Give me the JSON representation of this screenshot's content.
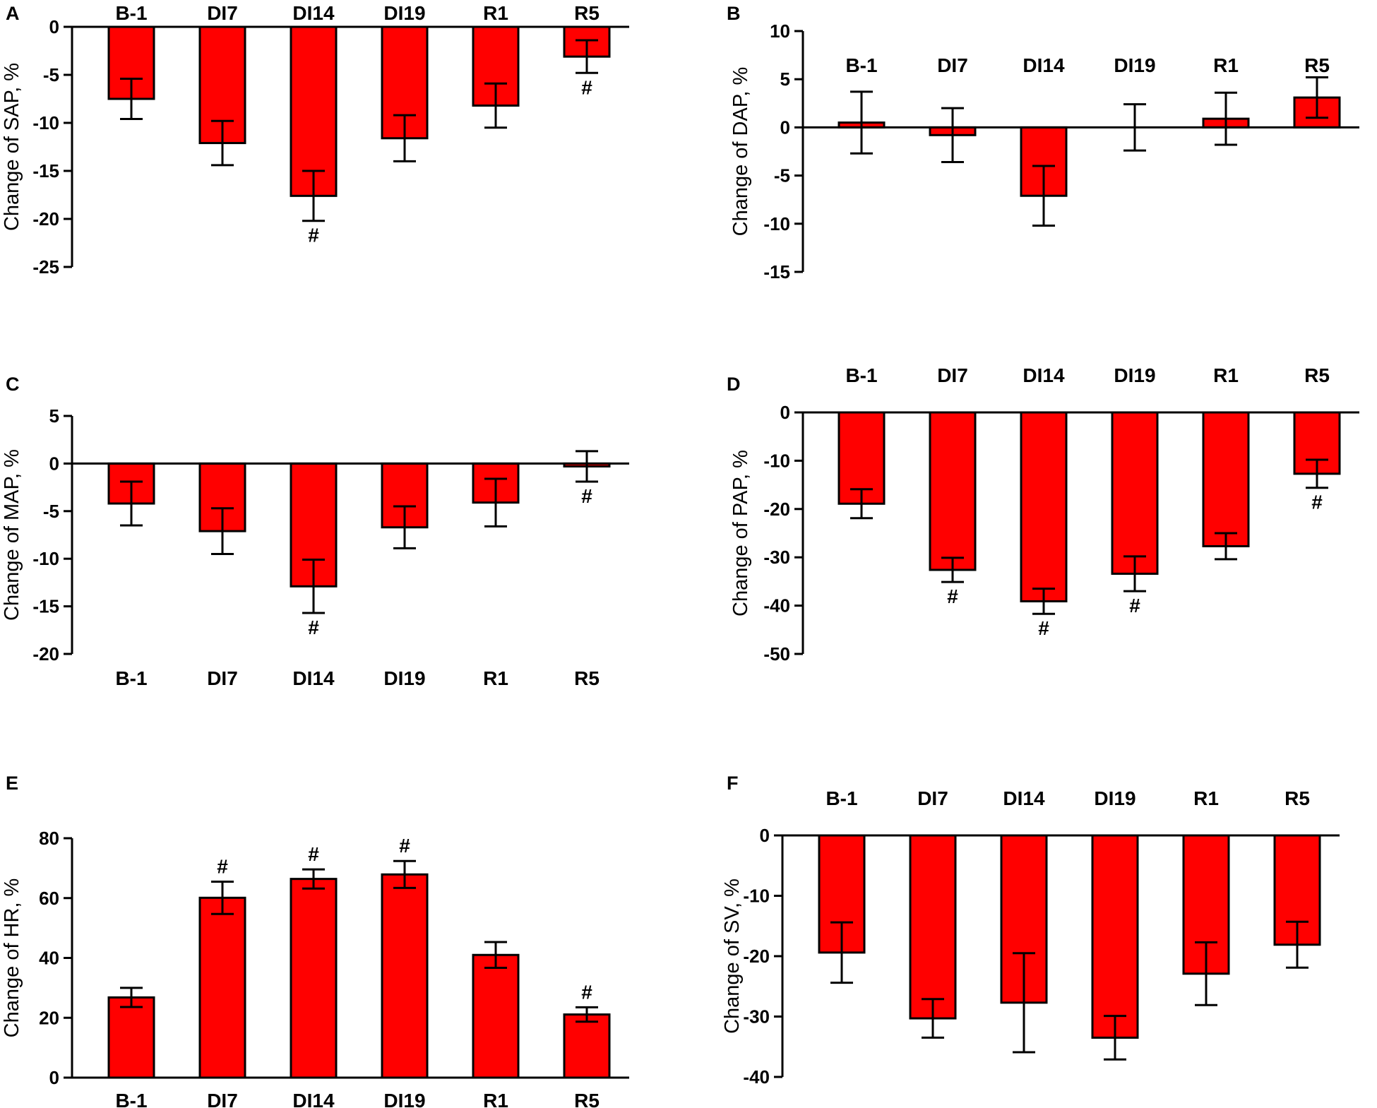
{
  "colors": {
    "bar": "#ff0000",
    "stroke": "#000000",
    "background": "#ffffff"
  },
  "chart_data": [
    {
      "panel": "A",
      "type": "bar",
      "ylabel": "Change of SAP, %",
      "categories": [
        "B-1",
        "DI7",
        "DI14",
        "DI19",
        "R1",
        "R5"
      ],
      "values": [
        -7.5,
        -12.1,
        -17.6,
        -11.6,
        -8.2,
        -3.1
      ],
      "errors": [
        2.1,
        2.3,
        2.6,
        2.4,
        2.3,
        1.7
      ],
      "significant": [
        "",
        "",
        "#",
        "",
        "",
        "#"
      ],
      "ylim": [
        -25,
        0
      ],
      "yticks": [
        "0",
        "-5",
        "-10",
        "-15",
        "-20",
        "-25"
      ]
    },
    {
      "panel": "B",
      "type": "bar",
      "ylabel": "Change of DAP, %",
      "categories": [
        "B-1",
        "DI7",
        "DI14",
        "DI19",
        "R1",
        "R5"
      ],
      "values": [
        0.5,
        -0.8,
        -7.1,
        0.0,
        0.9,
        3.1
      ],
      "errors": [
        3.2,
        2.8,
        3.1,
        2.4,
        2.7,
        2.1
      ],
      "significant": [
        "",
        "",
        "",
        "",
        "",
        ""
      ],
      "ylim": [
        -15,
        10
      ],
      "yticks": [
        "10",
        "5",
        "0",
        "-5",
        "-10",
        "-15"
      ]
    },
    {
      "panel": "C",
      "type": "bar",
      "ylabel": "Change of MAP, %",
      "categories": [
        "B-1",
        "DI7",
        "DI14",
        "DI19",
        "R1",
        "R5"
      ],
      "values": [
        -4.2,
        -7.1,
        -12.9,
        -6.7,
        -4.1,
        -0.3
      ],
      "errors": [
        2.3,
        2.4,
        2.8,
        2.2,
        2.5,
        1.6
      ],
      "significant": [
        "",
        "",
        "#",
        "",
        "",
        "#"
      ],
      "ylim": [
        -20,
        5
      ],
      "yticks": [
        "5",
        "0",
        "-5",
        "-10",
        "-15",
        "-20"
      ]
    },
    {
      "panel": "D",
      "type": "bar",
      "ylabel": "Change of PAP, %",
      "categories": [
        "B-1",
        "DI7",
        "DI14",
        "DI19",
        "R1",
        "R5"
      ],
      "values": [
        -18.9,
        -32.6,
        -39.1,
        -33.4,
        -27.7,
        -12.7
      ],
      "errors": [
        3.0,
        2.5,
        2.6,
        3.6,
        2.7,
        2.9
      ],
      "significant": [
        "",
        "#",
        "#",
        "#",
        "",
        "#"
      ],
      "ylim": [
        -50,
        0
      ],
      "yticks": [
        "0",
        "-10",
        "-20",
        "-30",
        "-40",
        "-50"
      ]
    },
    {
      "panel": "E",
      "type": "bar",
      "ylabel": "Change of HR, %",
      "categories": [
        "B-1",
        "DI7",
        "DI14",
        "DI19",
        "R1",
        "R5"
      ],
      "values": [
        26.8,
        60.1,
        66.4,
        67.9,
        41.0,
        21.1
      ],
      "errors": [
        3.2,
        5.4,
        3.2,
        4.5,
        4.3,
        2.4
      ],
      "significant": [
        "",
        "#",
        "#",
        "#",
        "",
        "#"
      ],
      "ylim": [
        0,
        80
      ],
      "yticks": [
        "80",
        "60",
        "40",
        "20",
        "0"
      ]
    },
    {
      "panel": "F",
      "type": "bar",
      "ylabel": "Change of SV, %",
      "categories": [
        "B-1",
        "DI7",
        "DI14",
        "DI19",
        "R1",
        "R5"
      ],
      "values": [
        -19.4,
        -30.3,
        -27.7,
        -33.5,
        -22.9,
        -18.1
      ],
      "errors": [
        5.0,
        3.2,
        8.2,
        3.6,
        5.2,
        3.8
      ],
      "significant": [
        "",
        "",
        "",
        "",
        "",
        ""
      ],
      "ylim": [
        -40,
        0
      ],
      "yticks": [
        "0",
        "-10",
        "-20",
        "-30",
        "-40"
      ]
    }
  ]
}
